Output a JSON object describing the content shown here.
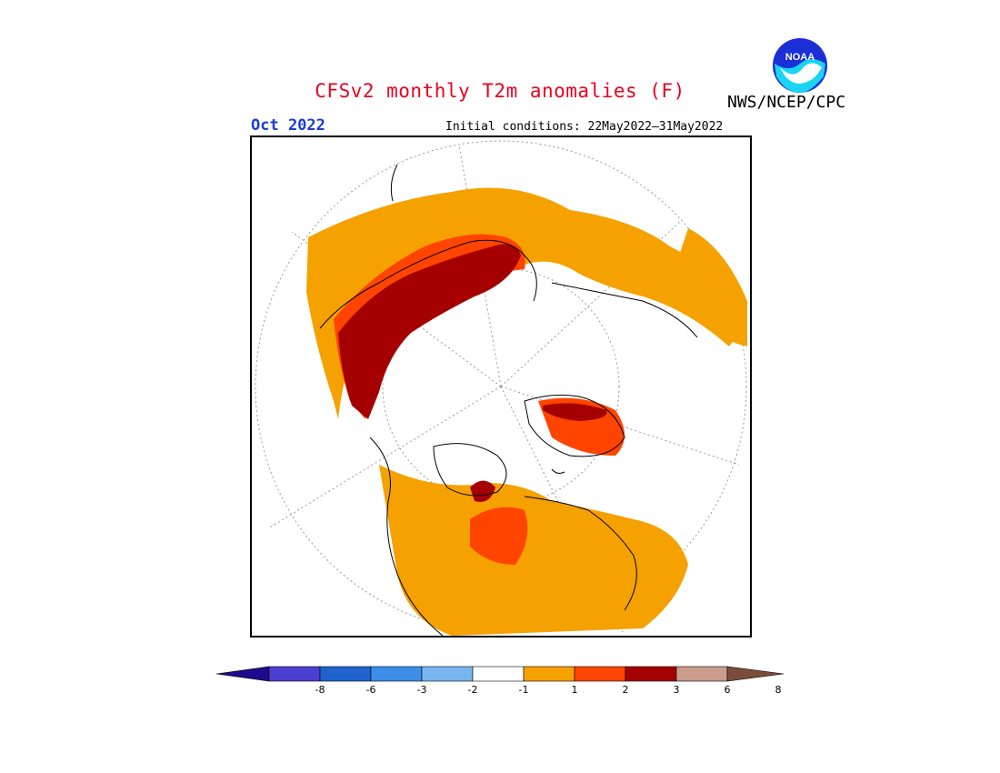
{
  "title": "CFSv2 monthly T2m anomalies (F)",
  "agency": "NWS/NCEP/CPC",
  "logo_text": "NOAA",
  "month": "Oct 2022",
  "initial_conditions": "Initial conditions: 22May2022–31May2022",
  "colorbar": {
    "colors": [
      "#1e0a8c",
      "#4b3fd0",
      "#1f63cf",
      "#3d8ee8",
      "#79b6f0",
      "#ffffff",
      "#f5a100",
      "#ff4400",
      "#a50000",
      "#c99c8c",
      "#7d4b3a"
    ],
    "ticks": [
      "-8",
      "-6",
      "-3",
      "-2",
      "-1",
      "1",
      "2",
      "3",
      "6",
      "8"
    ]
  },
  "legend_colors": {
    "above_1_2": "#f5a100",
    "above_2_3": "#ff4400",
    "above_3_6": "#a50000",
    "above_6_8": "#c99c8c",
    "below_1_2": "#79b6f0"
  }
}
